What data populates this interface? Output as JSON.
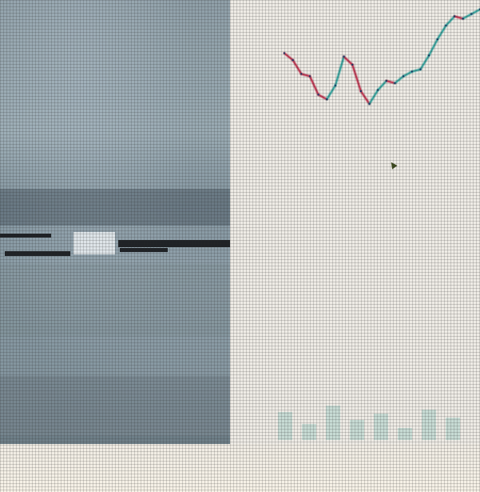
{
  "screen": {
    "left_panel": {
      "content": "photo"
    },
    "right_panel": {
      "chart": {
        "type": "line",
        "series": [
          {
            "color_up": "#3aa6a0",
            "color_down": "#c23a55",
            "values": [
              58,
              52,
              40,
              38,
              22,
              18,
              30,
              55,
              48,
              25,
              14,
              26,
              34,
              32,
              38,
              42,
              44,
              56,
              70,
              82,
              90,
              88,
              92,
              96
            ]
          }
        ]
      },
      "caption_text": "",
      "cursor": "arrow-cursor"
    }
  },
  "chart_data": {
    "type": "line",
    "x": [
      1,
      2,
      3,
      4,
      5,
      6,
      7,
      8,
      9,
      10,
      11,
      12,
      13,
      14,
      15,
      16,
      17,
      18,
      19,
      20,
      21,
      22,
      23,
      24
    ],
    "series": [
      {
        "values": [
          58,
          52,
          40,
          38,
          22,
          18,
          30,
          55,
          48,
          25,
          14,
          26,
          34,
          32,
          38,
          42,
          44,
          56,
          70,
          82,
          90,
          88,
          92,
          96
        ]
      }
    ],
    "title": "",
    "xlabel": "",
    "ylabel": "",
    "grid": false
  }
}
